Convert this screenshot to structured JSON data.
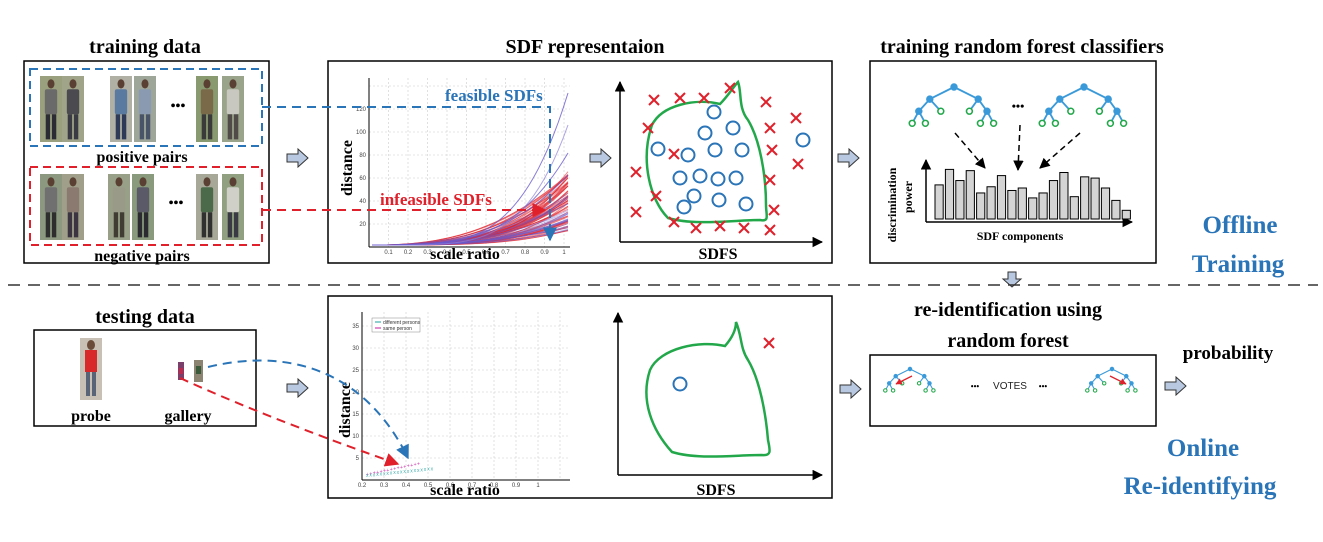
{
  "titles": {
    "training_data": "training data",
    "sdf_representation": "SDF representaion",
    "training_rf": "training random forest classifiers",
    "testing_data": "testing data",
    "reid_line1": "re-identification using",
    "reid_line2": "random forest"
  },
  "training_box": {
    "positive_pairs": "positive pairs",
    "negative_pairs": "negative pairs",
    "ellipsis": "•••"
  },
  "sdf_plot_top": {
    "feasible": "feasible SDFs",
    "infeasible": "infeasible SDFs",
    "ylabel": "distance",
    "xlabel": "scale ratio",
    "yticks": [
      "20",
      "40",
      "60",
      "80",
      "100",
      "120"
    ],
    "xticks": [
      "0.1",
      "0.2",
      "0.3",
      "0.4",
      "0.5",
      "0.6",
      "0.7",
      "0.8",
      "0.9",
      "1"
    ]
  },
  "sdfs_label_top": "SDFS",
  "rf_box": {
    "ylabel_line1": "discrimination",
    "ylabel_line2": "power",
    "xlabel": "SDF components",
    "ellipsis": "•••",
    "bars": [
      0.55,
      0.8,
      0.62,
      0.78,
      0.42,
      0.52,
      0.7,
      0.46,
      0.5,
      0.34,
      0.42,
      0.62,
      0.75,
      0.36,
      0.68,
      0.66,
      0.5,
      0.3,
      0.14
    ]
  },
  "section_labels": {
    "offline_line1": "Offline",
    "offline_line2": "Training",
    "online_line1": "Online",
    "online_line2": "Re-identifying"
  },
  "testing_box": {
    "probe": "probe",
    "gallery": "gallery"
  },
  "sdf_plot_bottom": {
    "ylabel": "distance",
    "xlabel": "scale ratio",
    "legend": [
      "different persons",
      "same person"
    ],
    "yticks": [
      "5",
      "10",
      "15",
      "20",
      "25",
      "30",
      "35"
    ],
    "xticks": [
      "0.2",
      "0.3",
      "0.4",
      "0.5",
      "0.6",
      "0.7",
      "0.8",
      "0.9",
      "1"
    ]
  },
  "sdfs_label_bottom": "SDFS",
  "reid_box": {
    "votes": "VOTES",
    "ellipsis_left": "•••",
    "ellipsis_right": "•••"
  },
  "probability": "probability",
  "colors": {
    "blue": "#2a74b8",
    "red": "#e0202a",
    "green": "#22a84a",
    "tree_blue": "#3a9ad9",
    "purple": "#6a5acd",
    "arrow_fill": "#b8c8e0"
  }
}
